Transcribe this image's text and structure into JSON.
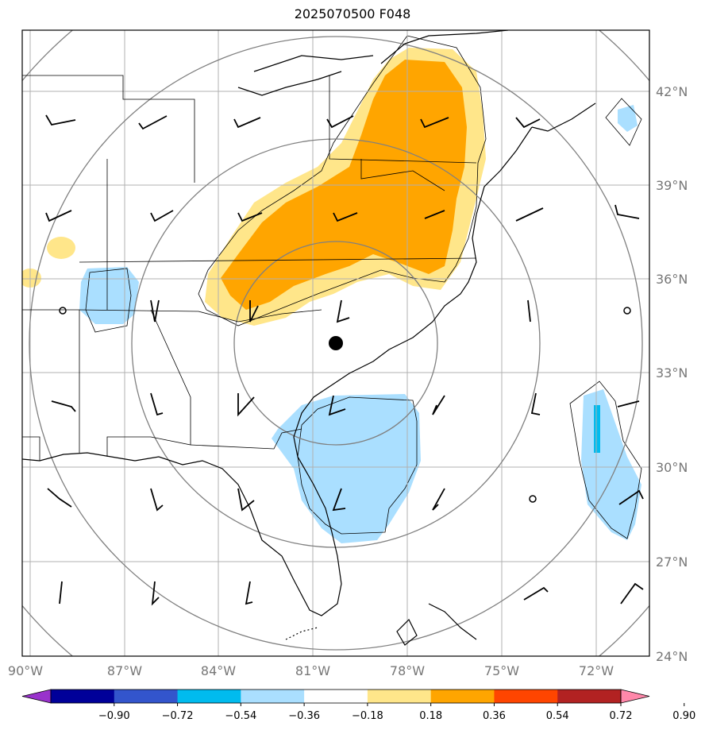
{
  "title": "2025070500 F048",
  "map": {
    "lon_range": [
      -90,
      -70
    ],
    "lat_range": [
      24,
      44
    ],
    "lon_ticks": [
      "90°W",
      "87°W",
      "84°W",
      "81°W",
      "78°W",
      "75°W",
      "72°W"
    ],
    "lat_ticks": [
      "24°N",
      "27°N",
      "30°N",
      "33°N",
      "36°N",
      "39°N",
      "42°N"
    ],
    "tick_color": "#777777",
    "center_marker": {
      "lon": -80.3,
      "lat": 34.0
    }
  },
  "colorbar": {
    "labels": [
      "−0.90",
      "−0.72",
      "−0.54",
      "−0.36",
      "−0.18",
      "0.18",
      "0.36",
      "0.54",
      "0.72",
      "0.90"
    ],
    "colors": [
      "#9932cc",
      "#000099",
      "#3355cc",
      "#00bbee",
      "#aadfff",
      "#ffffff",
      "#ffe68a",
      "#ffa500",
      "#ff4500",
      "#b22222",
      "#ff88aa"
    ]
  }
}
